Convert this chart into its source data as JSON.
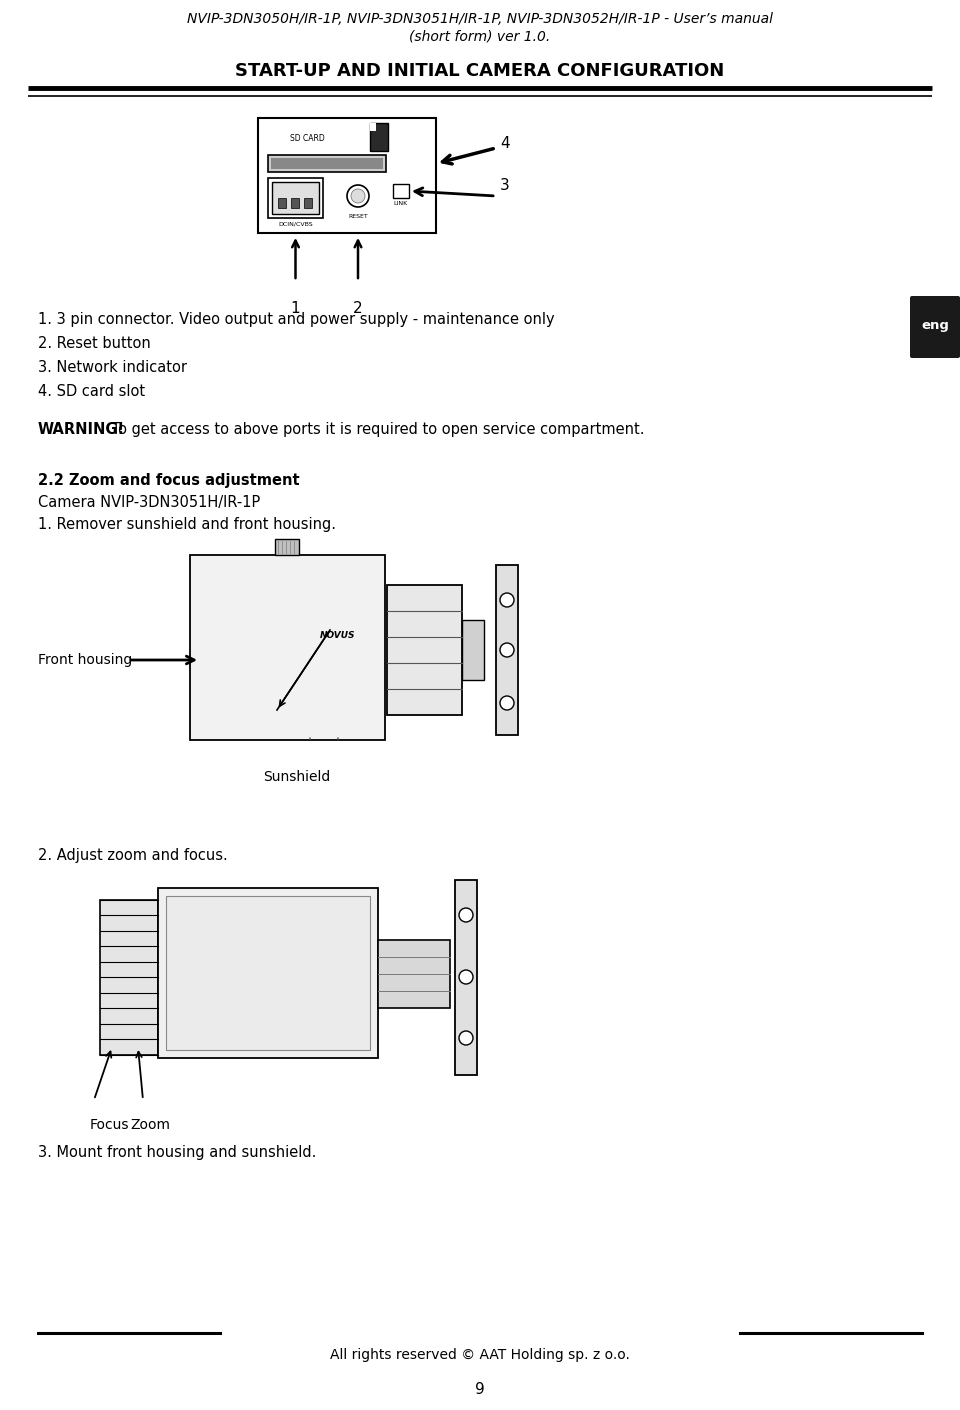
{
  "title_line1": "NVIP-3DN3050H/IR-1P, NVIP-3DN3051H/IR-1P, NVIP-3DN3052H/IR-1P - User’s manual",
  "title_line2": "(short form) ver 1.0.",
  "section_title": "START-UP AND INITIAL CAMERA CONFIGURATION",
  "list_items": [
    "1. 3 pin connector. Video output and power supply - maintenance only",
    "2. Reset button",
    "3. Network indicator",
    "4. SD card slot"
  ],
  "warning_bold": "WARNING!",
  "warning_text": " To get access to above ports it is required to open service compartment.",
  "section2_bold": "2.2 Zoom and focus adjustment",
  "camera_model": "Camera NVIP-3DN3051H/IR-1P",
  "step1": "1. Remover sunshield and front housing.",
  "label_front_housing": "Front housing",
  "label_sunshield": "Sunshield",
  "step2": "2. Adjust zoom and focus.",
  "label_focus": "Focus",
  "label_zoom": "Zoom",
  "step3": "3. Mount front housing and sunshield.",
  "footer_text": "All rights reserved © AAT Holding sp. z o.o.",
  "page_number": "9",
  "eng_label": "eng",
  "bg_color": "#ffffff",
  "text_color": "#000000"
}
